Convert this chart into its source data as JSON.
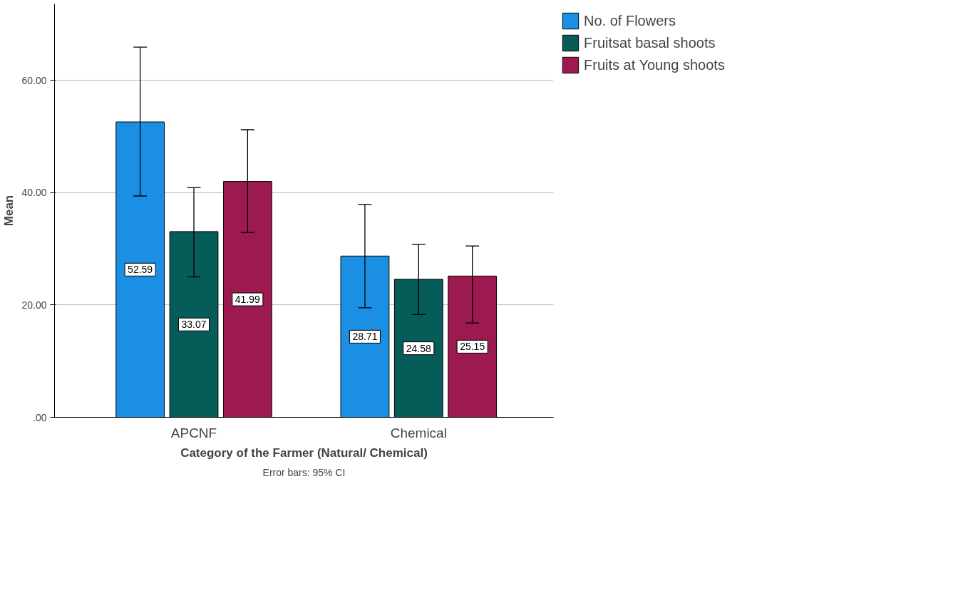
{
  "chart_data": {
    "type": "bar",
    "xlabel": "Category of the Farmer (Natural/ Chemical)",
    "ylabel": "Mean",
    "categories": [
      "APCNF",
      "Chemical"
    ],
    "series": [
      {
        "name": "No. of Flowers",
        "color": "#1a8fe3",
        "values": [
          52.59,
          28.71
        ],
        "errors": [
          [
            39.4,
            65.9
          ],
          [
            19.5,
            37.9
          ]
        ]
      },
      {
        "name": "Fruitsat basal shoots",
        "color": "#065c58",
        "values": [
          33.07,
          24.58
        ],
        "errors": [
          [
            25.0,
            40.9
          ],
          [
            18.3,
            30.8
          ]
        ]
      },
      {
        "name": "Fruits at Young shoots",
        "color": "#9c1a4f",
        "values": [
          41.99,
          25.15
        ],
        "errors": [
          [
            32.9,
            51.2
          ],
          [
            16.8,
            30.5
          ]
        ]
      }
    ],
    "ylim": [
      0,
      73.6
    ],
    "yticks": [
      {
        "value": 0,
        "label": ".00"
      },
      {
        "value": 20,
        "label": "20.00"
      },
      {
        "value": 40,
        "label": "40.00"
      },
      {
        "value": 60,
        "label": "60.00"
      }
    ],
    "grid": "y",
    "legend": "top right",
    "data_labels": true,
    "annotations": [
      "Error bars: 95% CI"
    ]
  }
}
